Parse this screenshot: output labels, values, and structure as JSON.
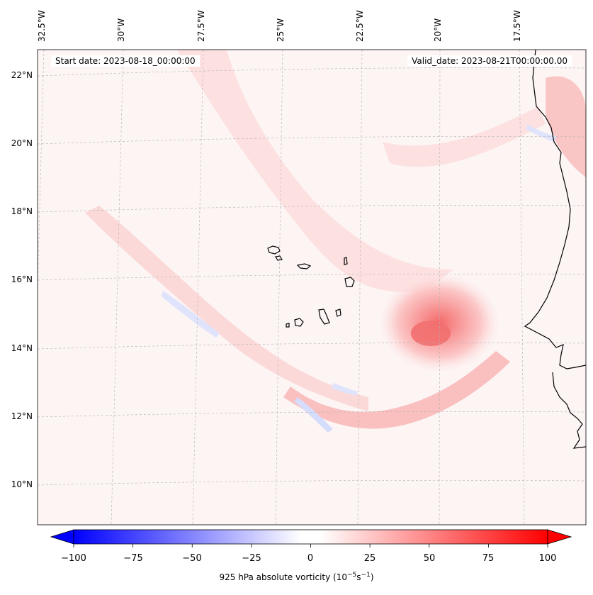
{
  "map": {
    "start_label": "Start date: 2023-08-18_00:00:00",
    "valid_label": "Valid_date: 2023-08-21T00:00:00.00",
    "lon_labels": [
      "32.5°W",
      "30°W",
      "27.5°W",
      "25°W",
      "22.5°W",
      "20°W",
      "17.5°W"
    ],
    "lat_labels": [
      "22°N",
      "20°N",
      "18°N",
      "16°N",
      "14°N",
      "12°N",
      "10°N"
    ],
    "coastline_color": "#000000",
    "gridline_color": "#b0b0b0"
  },
  "colorbar": {
    "min": -100,
    "max": 100,
    "ticks": [
      "−100",
      "−75",
      "−50",
      "−25",
      "0",
      "25",
      "50",
      "75",
      "100"
    ],
    "label": "925 hPa absolute vorticity (10",
    "label_exp1": "−5",
    "label_mid": "s",
    "label_exp2": "−1",
    "label_end": ")",
    "low_color": "#0000ff",
    "high_color": "#ff0000"
  },
  "features": {
    "vortex_name": "tropical-disturbance-vortex",
    "vortex_peak": 45
  }
}
